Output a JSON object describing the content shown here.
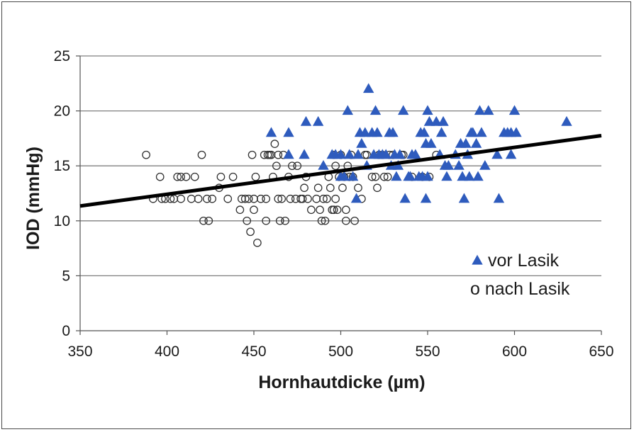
{
  "chart_data": {
    "type": "scatter",
    "title": "",
    "xlabel": "Hornhautdicke (µm)",
    "ylabel": "IOD (mmHg)",
    "xlim": [
      350,
      650
    ],
    "ylim": [
      0,
      25
    ],
    "x_ticks": [
      "350",
      "400",
      "450",
      "500",
      "550",
      "600",
      "650"
    ],
    "y_ticks": [
      "0",
      "5",
      "10",
      "15",
      "20",
      "25"
    ],
    "grid": "horizontal",
    "legend_placement": "bottom-right",
    "colors": {
      "triangle": "#2e5bbd",
      "circle_stroke": "#333333",
      "trendline": "#000000",
      "grid": "#7f7f7f"
    },
    "series": [
      {
        "name": "vor Lasik",
        "marker": "triangle",
        "points": [
          [
            460,
            18
          ],
          [
            470,
            18
          ],
          [
            470,
            16
          ],
          [
            479,
            16
          ],
          [
            480,
            19
          ],
          [
            487,
            19
          ],
          [
            490,
            15
          ],
          [
            495,
            16
          ],
          [
            497,
            16
          ],
          [
            500,
            16
          ],
          [
            500,
            14
          ],
          [
            502,
            14
          ],
          [
            504,
            20
          ],
          [
            505,
            16
          ],
          [
            507,
            14
          ],
          [
            509,
            12
          ],
          [
            510,
            16
          ],
          [
            511,
            18
          ],
          [
            512,
            17
          ],
          [
            514,
            18
          ],
          [
            515,
            15
          ],
          [
            516,
            22
          ],
          [
            518,
            18
          ],
          [
            519,
            16
          ],
          [
            520,
            20
          ],
          [
            521,
            18
          ],
          [
            522,
            16
          ],
          [
            524,
            16
          ],
          [
            526,
            16
          ],
          [
            528,
            18
          ],
          [
            529,
            15
          ],
          [
            530,
            18
          ],
          [
            531,
            16
          ],
          [
            532,
            14
          ],
          [
            533,
            15
          ],
          [
            534,
            16
          ],
          [
            536,
            20
          ],
          [
            537,
            12
          ],
          [
            539,
            14
          ],
          [
            540,
            14
          ],
          [
            541,
            16
          ],
          [
            543,
            16
          ],
          [
            545,
            14
          ],
          [
            546,
            18
          ],
          [
            547,
            14
          ],
          [
            548,
            18
          ],
          [
            549,
            17
          ],
          [
            549,
            12
          ],
          [
            550,
            14
          ],
          [
            550,
            20
          ],
          [
            551,
            19
          ],
          [
            552,
            17
          ],
          [
            555,
            19
          ],
          [
            557,
            16
          ],
          [
            558,
            18
          ],
          [
            559,
            19
          ],
          [
            560,
            15
          ],
          [
            561,
            14
          ],
          [
            562,
            15
          ],
          [
            566,
            16
          ],
          [
            568,
            15
          ],
          [
            569,
            17
          ],
          [
            570,
            14
          ],
          [
            571,
            12
          ],
          [
            572,
            17
          ],
          [
            573,
            16
          ],
          [
            574,
            14
          ],
          [
            575,
            18
          ],
          [
            576,
            18
          ],
          [
            578,
            17
          ],
          [
            579,
            14
          ],
          [
            580,
            20
          ],
          [
            581,
            18
          ],
          [
            583,
            15
          ],
          [
            585,
            20
          ],
          [
            590,
            16
          ],
          [
            591,
            12
          ],
          [
            594,
            18
          ],
          [
            596,
            18
          ],
          [
            598,
            18
          ],
          [
            598,
            16
          ],
          [
            600,
            20
          ],
          [
            601,
            18
          ],
          [
            630,
            19
          ]
        ]
      },
      {
        "name": "o nach Lasik",
        "marker": "circle",
        "points": [
          [
            388,
            16
          ],
          [
            392,
            12
          ],
          [
            396,
            14
          ],
          [
            397,
            12
          ],
          [
            399,
            12
          ],
          [
            402,
            12
          ],
          [
            404,
            12
          ],
          [
            406,
            14
          ],
          [
            408,
            14
          ],
          [
            408,
            12
          ],
          [
            411,
            14
          ],
          [
            414,
            12
          ],
          [
            416,
            14
          ],
          [
            418,
            12
          ],
          [
            420,
            16
          ],
          [
            421,
            10
          ],
          [
            423,
            12
          ],
          [
            424,
            10
          ],
          [
            426,
            12
          ],
          [
            430,
            13
          ],
          [
            431,
            14
          ],
          [
            435,
            12
          ],
          [
            438,
            14
          ],
          [
            442,
            11
          ],
          [
            443,
            12
          ],
          [
            445,
            12
          ],
          [
            446,
            10
          ],
          [
            447,
            12
          ],
          [
            448,
            9
          ],
          [
            449,
            16
          ],
          [
            450,
            11
          ],
          [
            450,
            12
          ],
          [
            451,
            14
          ],
          [
            452,
            8
          ],
          [
            454,
            12
          ],
          [
            456,
            16
          ],
          [
            457,
            10
          ],
          [
            457,
            12
          ],
          [
            458,
            16
          ],
          [
            459,
            16
          ],
          [
            460,
            16
          ],
          [
            461,
            14
          ],
          [
            462,
            17
          ],
          [
            463,
            15
          ],
          [
            464,
            12
          ],
          [
            464,
            16
          ],
          [
            465,
            10
          ],
          [
            466,
            12
          ],
          [
            467,
            16
          ],
          [
            468,
            10
          ],
          [
            470,
            14
          ],
          [
            471,
            12
          ],
          [
            472,
            15
          ],
          [
            474,
            12
          ],
          [
            475,
            15
          ],
          [
            477,
            12
          ],
          [
            478,
            12
          ],
          [
            479,
            13
          ],
          [
            480,
            14
          ],
          [
            481,
            12
          ],
          [
            483,
            11
          ],
          [
            486,
            12
          ],
          [
            487,
            13
          ],
          [
            488,
            11
          ],
          [
            489,
            10
          ],
          [
            490,
            12
          ],
          [
            491,
            10
          ],
          [
            492,
            12
          ],
          [
            493,
            14
          ],
          [
            494,
            13
          ],
          [
            495,
            11
          ],
          [
            496,
            11
          ],
          [
            496,
            16
          ],
          [
            497,
            15
          ],
          [
            497,
            12
          ],
          [
            498,
            11
          ],
          [
            499,
            14
          ],
          [
            500,
            16
          ],
          [
            501,
            13
          ],
          [
            502,
            14
          ],
          [
            503,
            10
          ],
          [
            503,
            11
          ],
          [
            504,
            15
          ],
          [
            505,
            14
          ],
          [
            506,
            16
          ],
          [
            507,
            14
          ],
          [
            508,
            10
          ],
          [
            510,
            13
          ],
          [
            512,
            12
          ],
          [
            514,
            16
          ],
          [
            515,
            16
          ],
          [
            518,
            14
          ],
          [
            520,
            14
          ],
          [
            521,
            13
          ],
          [
            522,
            16
          ],
          [
            524,
            16
          ],
          [
            525,
            14
          ],
          [
            527,
            14
          ],
          [
            528,
            16
          ],
          [
            530,
            16
          ],
          [
            535,
            16
          ],
          [
            536,
            16
          ],
          [
            541,
            14
          ],
          [
            547,
            14
          ],
          [
            551,
            14
          ],
          [
            555,
            16
          ]
        ]
      },
      {
        "name": "",
        "marker": "line",
        "points": [
          [
            350,
            11.35
          ],
          [
            650,
            17.75
          ]
        ]
      }
    ]
  }
}
